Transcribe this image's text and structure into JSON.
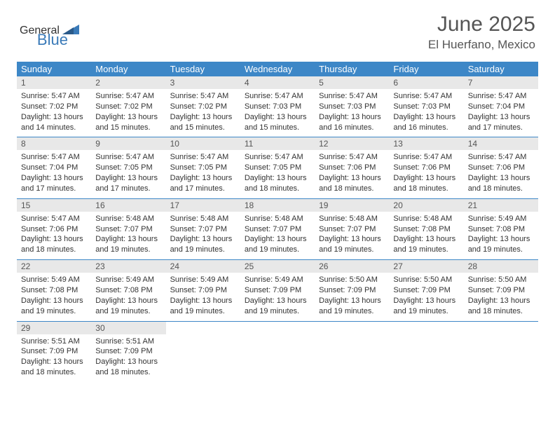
{
  "logo": {
    "text1": "General",
    "text2": "Blue"
  },
  "title": "June 2025",
  "location": "El Huerfano, Mexico",
  "colors": {
    "header_bg": "#3d87c7",
    "header_text": "#ffffff",
    "daynum_bg": "#e8e8e8",
    "border": "#3d87c7",
    "logo_blue": "#3a7ab8",
    "text_gray": "#555555"
  },
  "day_headers": [
    "Sunday",
    "Monday",
    "Tuesday",
    "Wednesday",
    "Thursday",
    "Friday",
    "Saturday"
  ],
  "labels": {
    "sunrise": "Sunrise:",
    "sunset": "Sunset:",
    "daylight": "Daylight:"
  },
  "weeks": [
    [
      {
        "n": "1",
        "sr": "5:47 AM",
        "ss": "7:02 PM",
        "dl": "13 hours and 14 minutes."
      },
      {
        "n": "2",
        "sr": "5:47 AM",
        "ss": "7:02 PM",
        "dl": "13 hours and 15 minutes."
      },
      {
        "n": "3",
        "sr": "5:47 AM",
        "ss": "7:02 PM",
        "dl": "13 hours and 15 minutes."
      },
      {
        "n": "4",
        "sr": "5:47 AM",
        "ss": "7:03 PM",
        "dl": "13 hours and 15 minutes."
      },
      {
        "n": "5",
        "sr": "5:47 AM",
        "ss": "7:03 PM",
        "dl": "13 hours and 16 minutes."
      },
      {
        "n": "6",
        "sr": "5:47 AM",
        "ss": "7:03 PM",
        "dl": "13 hours and 16 minutes."
      },
      {
        "n": "7",
        "sr": "5:47 AM",
        "ss": "7:04 PM",
        "dl": "13 hours and 17 minutes."
      }
    ],
    [
      {
        "n": "8",
        "sr": "5:47 AM",
        "ss": "7:04 PM",
        "dl": "13 hours and 17 minutes."
      },
      {
        "n": "9",
        "sr": "5:47 AM",
        "ss": "7:05 PM",
        "dl": "13 hours and 17 minutes."
      },
      {
        "n": "10",
        "sr": "5:47 AM",
        "ss": "7:05 PM",
        "dl": "13 hours and 17 minutes."
      },
      {
        "n": "11",
        "sr": "5:47 AM",
        "ss": "7:05 PM",
        "dl": "13 hours and 18 minutes."
      },
      {
        "n": "12",
        "sr": "5:47 AM",
        "ss": "7:06 PM",
        "dl": "13 hours and 18 minutes."
      },
      {
        "n": "13",
        "sr": "5:47 AM",
        "ss": "7:06 PM",
        "dl": "13 hours and 18 minutes."
      },
      {
        "n": "14",
        "sr": "5:47 AM",
        "ss": "7:06 PM",
        "dl": "13 hours and 18 minutes."
      }
    ],
    [
      {
        "n": "15",
        "sr": "5:47 AM",
        "ss": "7:06 PM",
        "dl": "13 hours and 18 minutes."
      },
      {
        "n": "16",
        "sr": "5:48 AM",
        "ss": "7:07 PM",
        "dl": "13 hours and 19 minutes."
      },
      {
        "n": "17",
        "sr": "5:48 AM",
        "ss": "7:07 PM",
        "dl": "13 hours and 19 minutes."
      },
      {
        "n": "18",
        "sr": "5:48 AM",
        "ss": "7:07 PM",
        "dl": "13 hours and 19 minutes."
      },
      {
        "n": "19",
        "sr": "5:48 AM",
        "ss": "7:07 PM",
        "dl": "13 hours and 19 minutes."
      },
      {
        "n": "20",
        "sr": "5:48 AM",
        "ss": "7:08 PM",
        "dl": "13 hours and 19 minutes."
      },
      {
        "n": "21",
        "sr": "5:49 AM",
        "ss": "7:08 PM",
        "dl": "13 hours and 19 minutes."
      }
    ],
    [
      {
        "n": "22",
        "sr": "5:49 AM",
        "ss": "7:08 PM",
        "dl": "13 hours and 19 minutes."
      },
      {
        "n": "23",
        "sr": "5:49 AM",
        "ss": "7:08 PM",
        "dl": "13 hours and 19 minutes."
      },
      {
        "n": "24",
        "sr": "5:49 AM",
        "ss": "7:09 PM",
        "dl": "13 hours and 19 minutes."
      },
      {
        "n": "25",
        "sr": "5:49 AM",
        "ss": "7:09 PM",
        "dl": "13 hours and 19 minutes."
      },
      {
        "n": "26",
        "sr": "5:50 AM",
        "ss": "7:09 PM",
        "dl": "13 hours and 19 minutes."
      },
      {
        "n": "27",
        "sr": "5:50 AM",
        "ss": "7:09 PM",
        "dl": "13 hours and 19 minutes."
      },
      {
        "n": "28",
        "sr": "5:50 AM",
        "ss": "7:09 PM",
        "dl": "13 hours and 18 minutes."
      }
    ],
    [
      {
        "n": "29",
        "sr": "5:51 AM",
        "ss": "7:09 PM",
        "dl": "13 hours and 18 minutes."
      },
      {
        "n": "30",
        "sr": "5:51 AM",
        "ss": "7:09 PM",
        "dl": "13 hours and 18 minutes."
      },
      null,
      null,
      null,
      null,
      null
    ]
  ]
}
